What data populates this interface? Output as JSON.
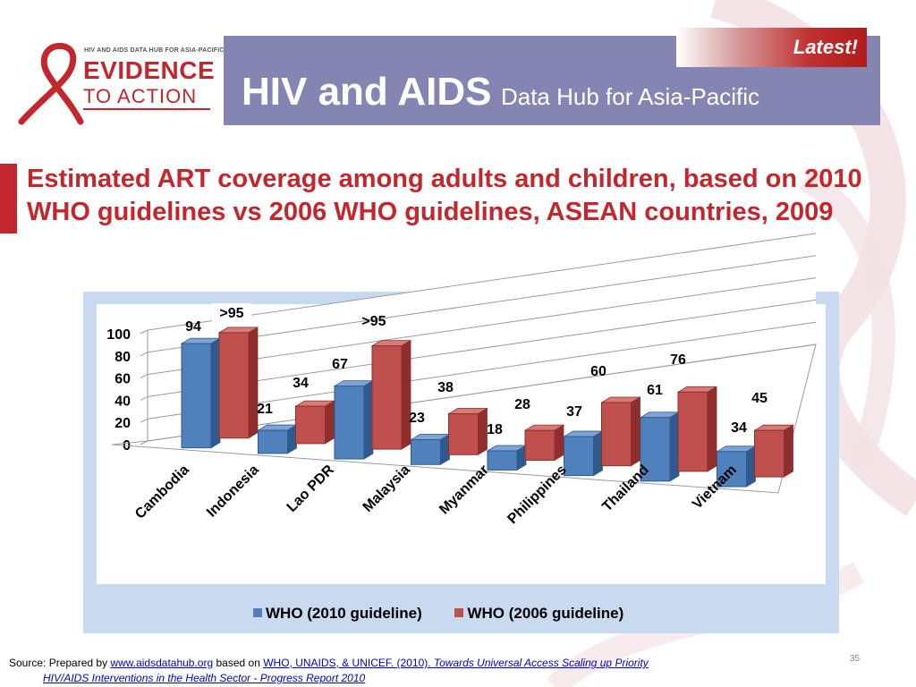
{
  "header": {
    "logo_small": "HIV AND AIDS DATA HUB FOR ASIA-PACIFIC",
    "logo_evidence": "EVIDENCE",
    "logo_to_action": "TO ACTION",
    "title_big": "HIV and AIDS",
    "title_small": "Data Hub for Asia-Pacific",
    "latest": "Latest!"
  },
  "slide": {
    "title": "Estimated ART coverage among adults and children, based on 2010 WHO guidelines vs 2006 WHO guidelines, ASEAN countries,  2009"
  },
  "colors": {
    "banner": "#8585b3",
    "accent_red": "#c1272d",
    "series_2010": "#4f81bd",
    "series_2006": "#c0504d",
    "chart_frame": "#c9daf0"
  },
  "chart_data": {
    "type": "bar",
    "style": "3d-clustered",
    "categories": [
      "Cambodia",
      "Indonesia",
      "Lao PDR",
      "Malaysia",
      "Myanmar",
      "Philippines",
      "Thailand",
      "Vietnam"
    ],
    "series": [
      {
        "name": "WHO (2010 guideline)",
        "values": [
          94,
          21,
          67,
          23,
          18,
          37,
          61,
          34
        ],
        "labels": [
          "94",
          "21",
          "67",
          "23",
          "18",
          "37",
          "61",
          "34"
        ]
      },
      {
        "name": "WHO (2006 guideline)",
        "values": [
          95,
          34,
          95,
          38,
          28,
          60,
          76,
          45
        ],
        "labels": [
          ">95",
          "34",
          ">95",
          "38",
          "28",
          "60",
          "76",
          "45"
        ]
      }
    ],
    "yticks": [
      "0",
      "20",
      "40",
      "60",
      "80",
      "100"
    ],
    "ylim": [
      0,
      100
    ],
    "grid": true,
    "legend": "bottom"
  },
  "footer": {
    "source_prefix": "Source:  Prepared by ",
    "source_link1": "www.aidsdatahub.org",
    "source_mid": " based on  ",
    "source_link2": "WHO, UNAIDS, & UNICEF. (2010). ",
    "source_italic_line1": "Towards Universal Access Scaling up Priority",
    "source_italic_line2": "HIV/AIDS Interventions in the Health Sector - Progress Report 2010",
    "page_number": "35"
  }
}
